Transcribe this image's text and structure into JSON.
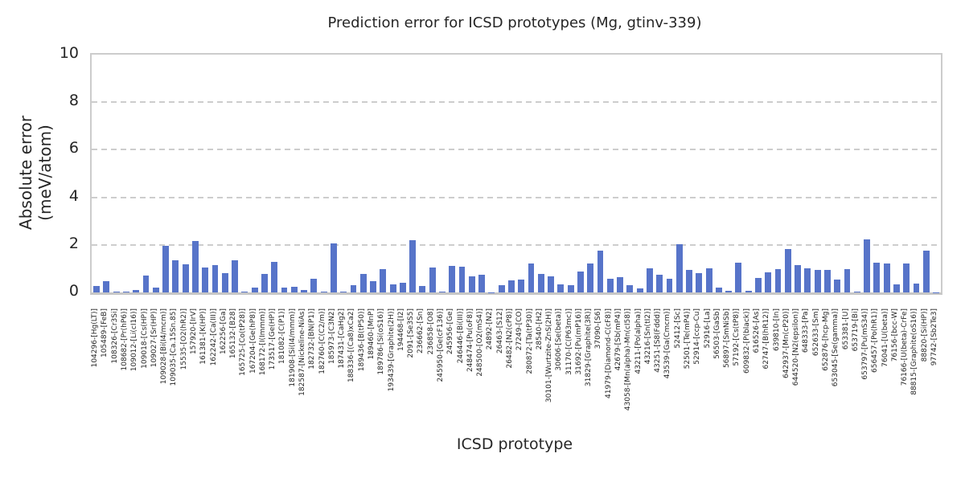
{
  "chart_data": {
    "type": "bar",
    "title": "Prediction error for ICSD prototypes (Mg, gtinv-339)",
    "xlabel": "ICSD prototype",
    "ylabel": "Absolute error (meV/atom)",
    "ylim": [
      0,
      10
    ],
    "yticks": [
      0,
      2,
      4,
      6,
      8,
      10
    ],
    "grid": "dashed horizontal lines at y=2,4,6,8",
    "legend": "none",
    "bar_color": "#5774c9",
    "grid_color": "#cdcdcd",
    "spine_color": "#cccccc",
    "text_color": "#262626",
    "categories": [
      "104296-[Hg(LT)]",
      "105489-[FeB]",
      "108326-[Cr3Si]",
      "108682-[Pr(hP6)]",
      "109012-[Li(cI16)]",
      "109018-[Cs(HP)]",
      "109027-[Sr(HP)]",
      "109028-[Bi(I4/mcm)]",
      "109035-[Ca.15Sn.85]",
      "15535-[O2(hR2)]",
      "157920-[IrV]",
      "161381-[K(HP)]",
      "162242-[Ca(III)]",
      "162256-[Ga]",
      "165132-[B28]",
      "165725-[Co(tP28)]",
      "167204-[Ge(hP8)]",
      "168172-[I(Immm)]",
      "173517-[Ge(HP)]",
      "181082-[C(P1)]",
      "181908-[Si(I4/mmm)]",
      "182587-[Nickeline-NiAs]",
      "182732-[BN(P1)]",
      "182760-[C(C2/m)]",
      "185973-[C3N2]",
      "187431-[CaHg2]",
      "188336-[(Ca8)xCa2]",
      "189436-[B(tP50)]",
      "189460-[MnP]",
      "189786-[Si(oS16)]",
      "193439-[Graphite(2H)]",
      "194468-[I2]",
      "2091-[Se3S5]",
      "236662-[Sn]",
      "236858-[O8]",
      "245950-[Ge(cF136)]",
      "245956-[Ge]",
      "246446-[Bi(III)]",
      "248474-[Pu(oF8)]",
      "248500-[O2(mS4)]",
      "24892-[N2]",
      "26463-[S12]",
      "26482-[N2(cP8)]",
      "27249-[CO]",
      "280872-[Ta(tP30)]",
      "28540-[H2]",
      "30101-[Wurtzite-ZnS(2H)]",
      "30606-[Se(beta)]",
      "31170-[C(P63mc)]",
      "31692-[Pu(mP16)]",
      "31829-[Graphite(3R)]",
      "37090-[S6]",
      "41979-[Diamond-C(cF8)]",
      "42679-[Sb(mP4)]",
      "43058-[Mn(alpha)-Mn(cI58)]",
      "43211-[Po(alpha)]",
      "43216-[Sn(tI2)]",
      "43251-[S8(Fddd)]",
      "43539-[Ga(Cmcm)]",
      "52412-[Sc]",
      "52501-[Te(mP4)]",
      "52914-[ccp-Cu]",
      "52916-[La]",
      "56503-[GaSb]",
      "56897-[SmNiSb]",
      "57192-[Cs(tP8)]",
      "609832-[P(black)]",
      "616526-[As]",
      "62747-[B(hR12)]",
      "639810-[In]",
      "642937-[Mn(cP20)]",
      "644520-[N2(epsilon)]",
      "648333-[Pa]",
      "652633-[Sm]",
      "652876-[hcp-Mg]",
      "653045-[Se(gamma)]",
      "653381-[U]",
      "653719-[Bi]",
      "653797-[Pu(mS34)]",
      "656457-[Po(hR1)]",
      "76041-[U(beta)]",
      "76156-[bcc-W]",
      "76166-[U(beta)-CrFe]",
      "88815-[Graphite(oS16)]",
      "88820-[Si(HP)]",
      "97742-[Sb2Te3]"
    ],
    "values": [
      0.27,
      0.48,
      0.02,
      0.02,
      0.1,
      0.7,
      0.21,
      1.95,
      1.36,
      1.19,
      2.17,
      1.04,
      1.15,
      0.81,
      1.36,
      0.05,
      0.2,
      0.77,
      1.3,
      0.2,
      0.25,
      0.1,
      0.57,
      0.02,
      2.05,
      0.02,
      0.32,
      0.78,
      0.47,
      0.98,
      0.33,
      0.4,
      2.21,
      0.26,
      1.04,
      0.05,
      1.11,
      1.08,
      0.67,
      0.73,
      0.01,
      0.31,
      0.52,
      0.53,
      1.23,
      0.78,
      0.66,
      0.33,
      0.3,
      0.88,
      1.21,
      1.77,
      0.58,
      0.63,
      0.32,
      0.16,
      1.0,
      0.73,
      0.58,
      2.02,
      0.96,
      0.8,
      1.03,
      0.22,
      0.06,
      1.24,
      0.06,
      0.62,
      0.83,
      0.99,
      1.83,
      1.15,
      1.03,
      0.96,
      0.96,
      0.54,
      0.98,
      0.04,
      2.22,
      1.26,
      1.21,
      0.35,
      1.2,
      0.36,
      1.76,
      0.01
    ]
  }
}
